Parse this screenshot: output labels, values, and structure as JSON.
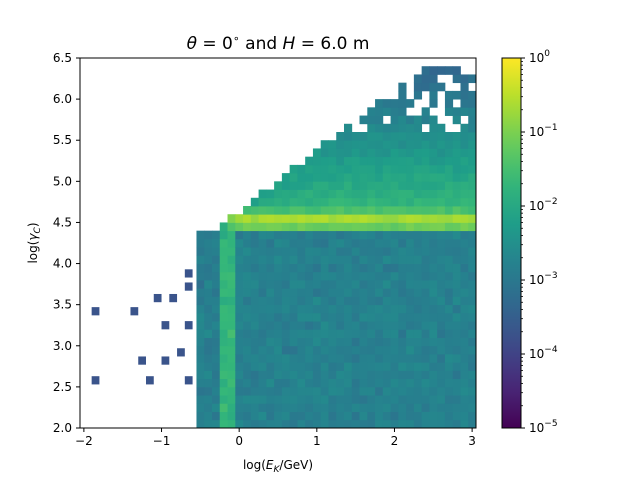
{
  "chart_data": {
    "type": "heatmap",
    "title_parts": {
      "theta_sym": "θ",
      "theta_rest": " = 0",
      "deg": "∘",
      "and": " and ",
      "h_sym": "H",
      "h_rest": " = 6.0 m"
    },
    "xlabel_parts": {
      "pre": "log(",
      "var": "E",
      "sub": "K",
      "post": "/GeV)"
    },
    "ylabel_parts": {
      "pre": "log(",
      "var": "γ",
      "sub": "C",
      "post": ")"
    },
    "xlim": [
      -2.05,
      3.05
    ],
    "ylim": [
      2.0,
      6.5
    ],
    "x_ticks": [
      -2,
      -1,
      0,
      1,
      2,
      3
    ],
    "x_tick_labels": [
      "−2",
      "−1",
      "0",
      "1",
      "2",
      "3"
    ],
    "y_ticks": [
      2.0,
      2.5,
      3.0,
      3.5,
      4.0,
      4.5,
      5.0,
      5.5,
      6.0,
      6.5
    ],
    "y_tick_labels": [
      "2.0",
      "2.5",
      "3.0",
      "3.5",
      "4.0",
      "4.5",
      "5.0",
      "5.5",
      "6.0",
      "6.5"
    ],
    "colorscale": "viridis",
    "color_scale_type": "log",
    "color_range": [
      1e-05,
      1
    ],
    "colorbar_ticks": [
      {
        "mantissa": "10",
        "exp": "0",
        "value": 1
      },
      {
        "mantissa": "10",
        "exp": "−1",
        "value": 0.1
      },
      {
        "mantissa": "10",
        "exp": "−2",
        "value": 0.01
      },
      {
        "mantissa": "10",
        "exp": "−3",
        "value": 0.001
      },
      {
        "mantissa": "10",
        "exp": "−4",
        "value": 0.0001
      },
      {
        "mantissa": "10",
        "exp": "−5",
        "value": 1e-05
      }
    ],
    "grid": false,
    "bins": {
      "x_start": -2.05,
      "x_step": 0.1,
      "nx": 51,
      "y_start": 2.0,
      "y_step": 0.1,
      "ny": 45
    },
    "ridge": {
      "y_center": 4.5,
      "peak_density": 0.25,
      "x_onset": -0.2
    },
    "isolated_points": [
      {
        "x": -1.85,
        "y": 3.42,
        "v": 0.0002
      },
      {
        "x": -1.35,
        "y": 3.42,
        "v": 0.0002
      },
      {
        "x": -1.05,
        "y": 3.58,
        "v": 0.0002
      },
      {
        "x": -0.85,
        "y": 3.58,
        "v": 0.0002
      },
      {
        "x": -0.65,
        "y": 3.88,
        "v": 0.0002
      },
      {
        "x": -0.65,
        "y": 3.72,
        "v": 0.0002
      },
      {
        "x": -0.95,
        "y": 3.25,
        "v": 0.0002
      },
      {
        "x": -0.65,
        "y": 3.25,
        "v": 0.0002
      },
      {
        "x": -1.25,
        "y": 2.82,
        "v": 0.0002
      },
      {
        "x": -0.95,
        "y": 2.82,
        "v": 0.0002
      },
      {
        "x": -0.75,
        "y": 2.92,
        "v": 0.0002
      },
      {
        "x": -1.85,
        "y": 2.58,
        "v": 0.0002
      },
      {
        "x": -1.15,
        "y": 2.58,
        "v": 0.0002
      },
      {
        "x": -0.65,
        "y": 2.58,
        "v": 0.0002
      }
    ]
  }
}
